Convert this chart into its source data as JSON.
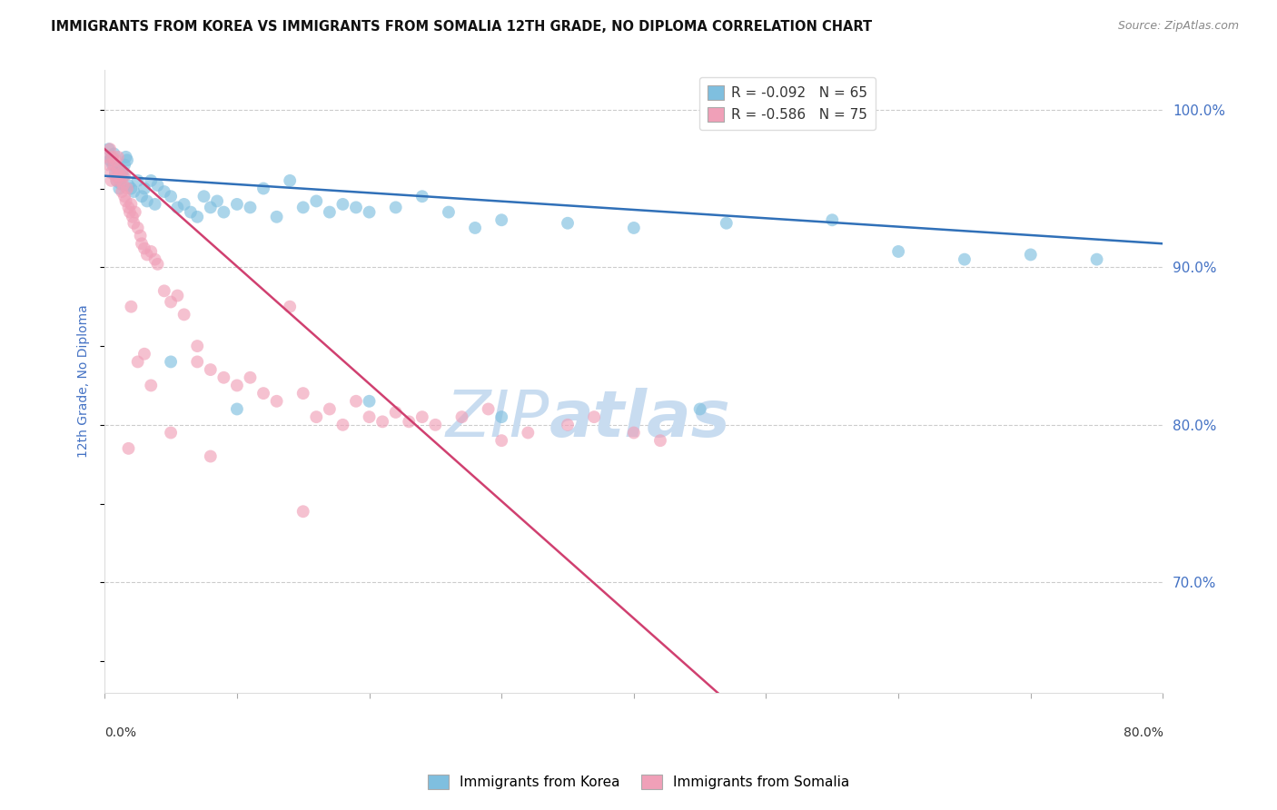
{
  "title": "IMMIGRANTS FROM KOREA VS IMMIGRANTS FROM SOMALIA 12TH GRADE, NO DIPLOMA CORRELATION CHART",
  "source": "Source: ZipAtlas.com",
  "ylabel": "12th Grade, No Diploma",
  "y_ticks_right": [
    100.0,
    90.0,
    80.0,
    70.0
  ],
  "xlim": [
    0.0,
    80.0
  ],
  "ylim": [
    63.0,
    102.5
  ],
  "korea_color": "#7fbfdf",
  "korea_color_line": "#3070b8",
  "somalia_color": "#f0a0b8",
  "somalia_color_line": "#d04070",
  "korea_R": -0.092,
  "korea_N": 65,
  "somalia_R": -0.586,
  "somalia_N": 75,
  "korea_scatter_x": [
    0.3,
    0.4,
    0.5,
    0.6,
    0.7,
    0.8,
    0.9,
    1.0,
    1.0,
    1.1,
    1.2,
    1.3,
    1.4,
    1.5,
    1.6,
    1.7,
    1.8,
    2.0,
    2.2,
    2.5,
    2.8,
    3.0,
    3.2,
    3.5,
    3.8,
    4.0,
    4.5,
    5.0,
    5.5,
    6.0,
    6.5,
    7.0,
    7.5,
    8.0,
    8.5,
    9.0,
    10.0,
    11.0,
    12.0,
    13.0,
    14.0,
    15.0,
    16.0,
    17.0,
    18.0,
    19.0,
    20.0,
    22.0,
    24.0,
    26.0,
    28.0,
    30.0,
    35.0,
    40.0,
    47.0,
    55.0,
    60.0,
    65.0,
    70.0,
    75.0,
    5.0,
    10.0,
    20.0,
    30.0,
    45.0
  ],
  "korea_scatter_y": [
    97.5,
    96.8,
    97.0,
    96.5,
    97.2,
    96.0,
    95.5,
    95.8,
    96.2,
    95.0,
    95.3,
    96.0,
    95.8,
    96.5,
    97.0,
    96.8,
    95.2,
    95.0,
    94.8,
    95.5,
    94.5,
    95.0,
    94.2,
    95.5,
    94.0,
    95.2,
    94.8,
    94.5,
    93.8,
    94.0,
    93.5,
    93.2,
    94.5,
    93.8,
    94.2,
    93.5,
    94.0,
    93.8,
    95.0,
    93.2,
    95.5,
    93.8,
    94.2,
    93.5,
    94.0,
    93.8,
    93.5,
    93.8,
    94.5,
    93.5,
    92.5,
    93.0,
    92.8,
    92.5,
    92.8,
    93.0,
    91.0,
    90.5,
    90.8,
    90.5,
    84.0,
    81.0,
    81.5,
    80.5,
    81.0
  ],
  "somalia_scatter_x": [
    0.2,
    0.3,
    0.4,
    0.5,
    0.5,
    0.6,
    0.7,
    0.8,
    0.8,
    0.9,
    1.0,
    1.0,
    1.1,
    1.2,
    1.3,
    1.3,
    1.4,
    1.5,
    1.5,
    1.6,
    1.7,
    1.8,
    1.9,
    2.0,
    2.1,
    2.2,
    2.3,
    2.5,
    2.7,
    2.8,
    3.0,
    3.2,
    3.5,
    3.8,
    4.0,
    4.5,
    5.0,
    5.5,
    6.0,
    7.0,
    8.0,
    9.0,
    10.0,
    11.0,
    12.0,
    13.0,
    14.0,
    15.0,
    16.0,
    17.0,
    18.0,
    19.0,
    20.0,
    21.0,
    22.0,
    23.0,
    24.0,
    25.0,
    27.0,
    29.0,
    30.0,
    32.0,
    35.0,
    37.0,
    40.0,
    42.0,
    15.0,
    5.0,
    2.0,
    7.0,
    3.0,
    8.0,
    1.8,
    2.5,
    3.5
  ],
  "somalia_scatter_y": [
    97.0,
    96.5,
    97.5,
    96.0,
    95.5,
    97.0,
    96.5,
    95.8,
    96.8,
    95.5,
    97.0,
    96.2,
    95.8,
    95.5,
    96.0,
    94.8,
    95.2,
    95.8,
    94.5,
    94.2,
    95.0,
    93.8,
    93.5,
    94.0,
    93.2,
    92.8,
    93.5,
    92.5,
    92.0,
    91.5,
    91.2,
    90.8,
    91.0,
    90.5,
    90.2,
    88.5,
    87.8,
    88.2,
    87.0,
    85.0,
    83.5,
    83.0,
    82.5,
    83.0,
    82.0,
    81.5,
    87.5,
    82.0,
    80.5,
    81.0,
    80.0,
    81.5,
    80.5,
    80.2,
    80.8,
    80.2,
    80.5,
    80.0,
    80.5,
    81.0,
    79.0,
    79.5,
    80.0,
    80.5,
    79.5,
    79.0,
    74.5,
    79.5,
    87.5,
    84.0,
    84.5,
    78.0,
    78.5,
    84.0,
    82.5
  ],
  "korea_line_x": [
    0.0,
    80.0
  ],
  "korea_line_y": [
    95.8,
    91.5
  ],
  "somalia_line_x": [
    0.0,
    47.0
  ],
  "somalia_line_y": [
    97.5,
    62.5
  ],
  "background_color": "#ffffff",
  "grid_color": "#cccccc",
  "title_fontsize": 10.5,
  "axis_label_fontsize": 10,
  "tick_fontsize": 10,
  "legend_fontsize": 11,
  "source_fontsize": 9,
  "watermark_zip": "ZIP",
  "watermark_atlas": "atlas",
  "watermark_color_zip": "#c8dcf0",
  "watermark_color_atlas": "#c8dcf0",
  "watermark_fontsize": 52
}
